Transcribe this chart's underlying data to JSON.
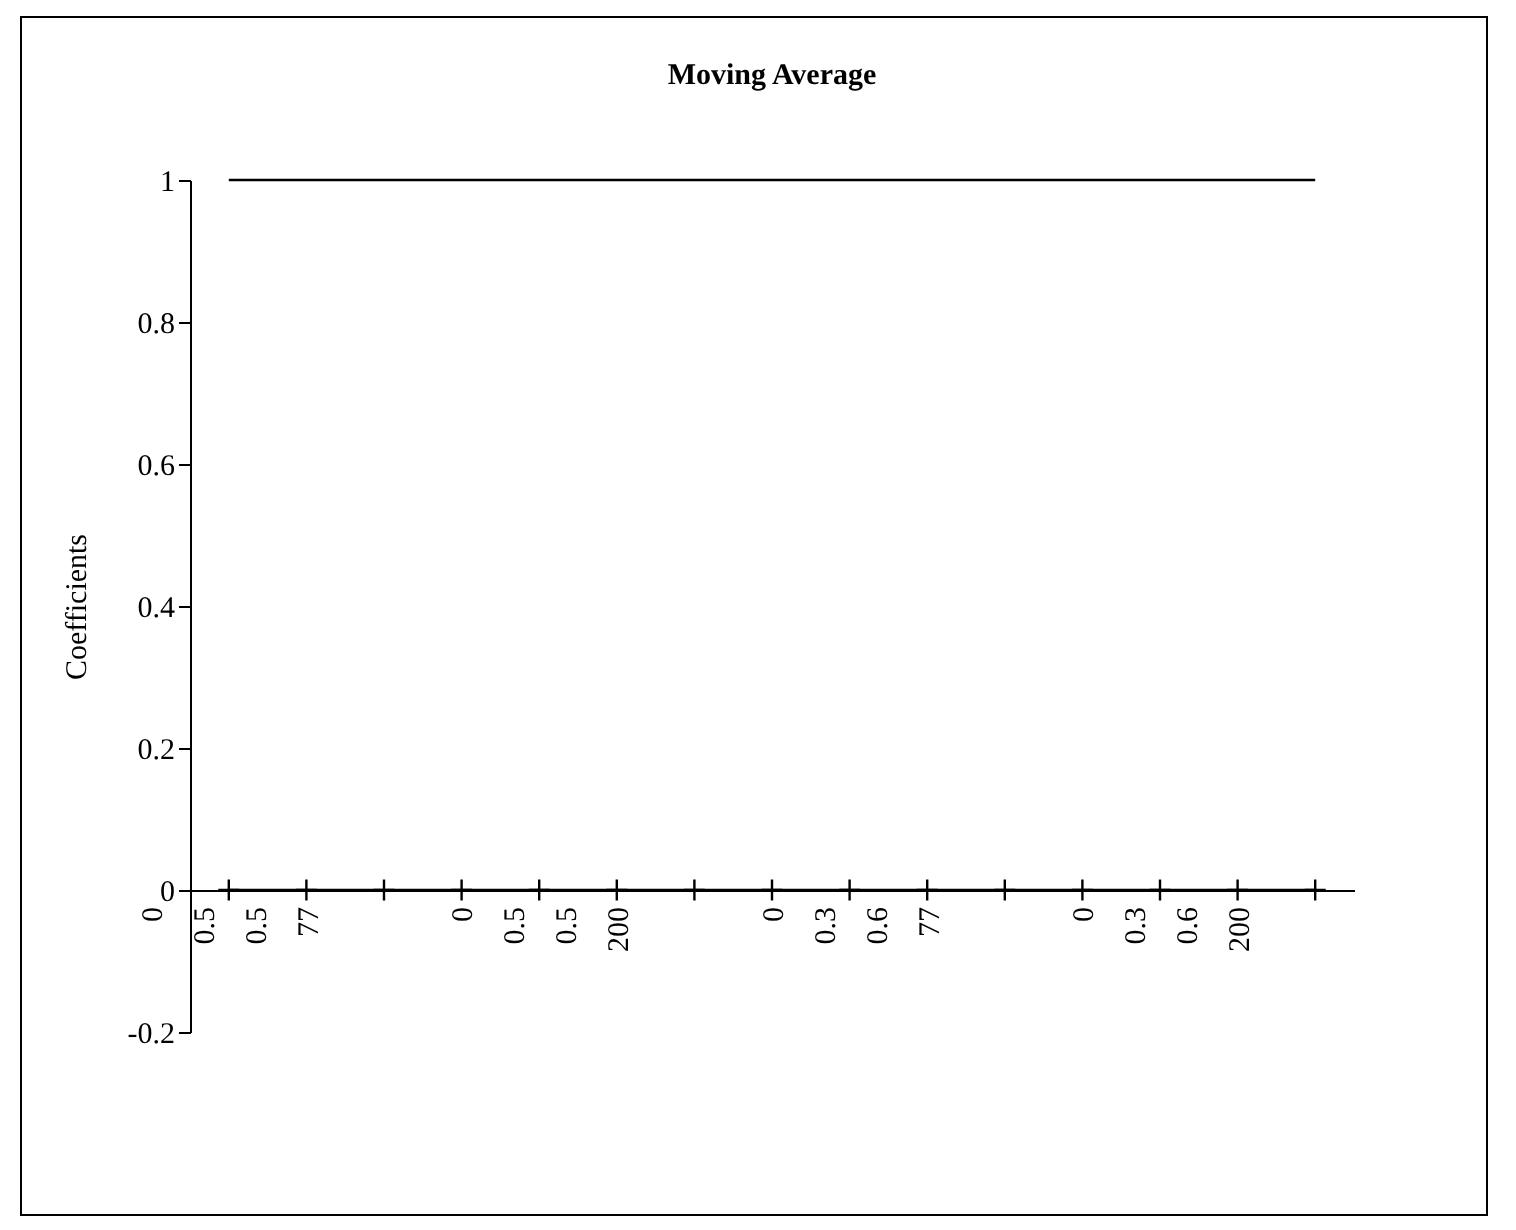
{
  "chart_data": {
    "type": "line",
    "title": "Moving Average",
    "ylabel": "Coefficients",
    "categories": [
      "0\n0.5\n0.5\n77",
      null,
      null,
      null,
      "0\n0.5\n0.5\n200",
      null,
      null,
      null,
      "0\n0.3\n0.6\n77",
      null,
      null,
      null,
      "0\n0.3\n0.6\n200",
      null,
      null
    ],
    "series": [
      {
        "color": "#000000",
        "values": [
          1,
          1,
          1,
          1,
          1,
          1,
          1,
          1,
          1,
          1,
          1,
          1,
          1,
          1,
          1
        ]
      },
      {
        "color": "#000000",
        "marker": "cross",
        "values": [
          0,
          0,
          0,
          0,
          0,
          0,
          0,
          0,
          0,
          0,
          0,
          0,
          0,
          0,
          0
        ]
      }
    ],
    "ylim": [
      -0.2,
      1
    ],
    "yticks": [
      -0.2,
      0,
      0.2,
      0.4,
      0.6,
      0.8,
      1
    ],
    "grid": false,
    "legend": false,
    "marker": "none",
    "line_style": "solid"
  }
}
